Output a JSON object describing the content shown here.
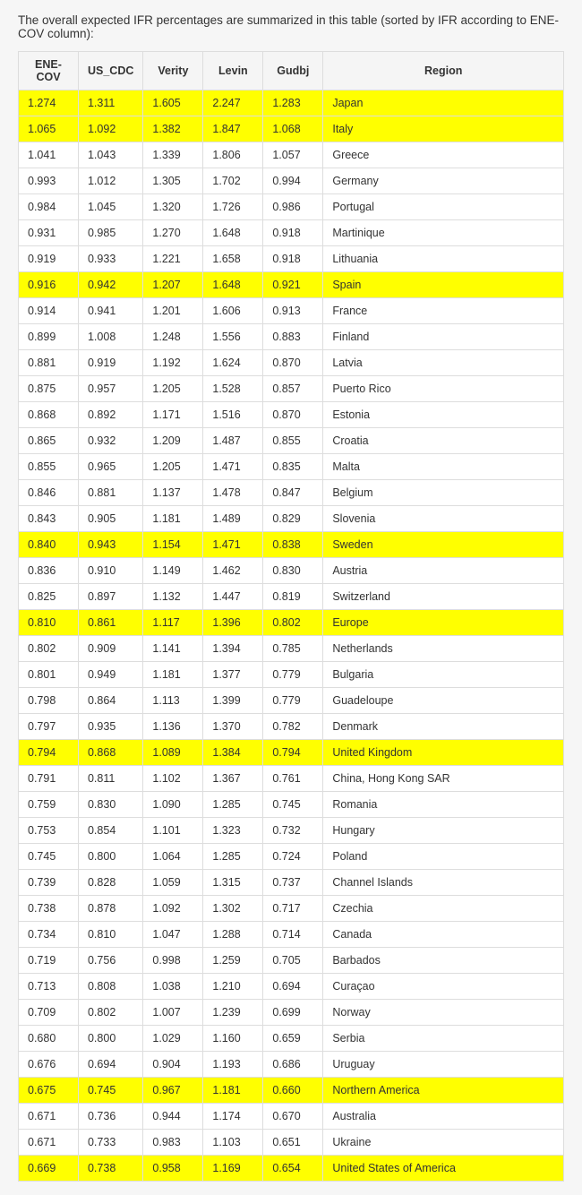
{
  "intro": "The overall expected IFR percentages are summarized in this table (sorted by IFR according to ENE-COV column):",
  "table": {
    "columns": [
      "ENE-COV",
      "US_CDC",
      "Verity",
      "Levin",
      "Gudbj",
      "Region"
    ],
    "highlight_color": "#ffff00",
    "border_color": "#dddddd",
    "header_bg": "#f5f5f5",
    "rows": [
      {
        "hl": true,
        "v": [
          "1.274",
          "1.311",
          "1.605",
          "2.247",
          "1.283",
          "Japan"
        ]
      },
      {
        "hl": true,
        "v": [
          "1.065",
          "1.092",
          "1.382",
          "1.847",
          "1.068",
          "Italy"
        ]
      },
      {
        "hl": false,
        "v": [
          "1.041",
          "1.043",
          "1.339",
          "1.806",
          "1.057",
          "Greece"
        ]
      },
      {
        "hl": false,
        "v": [
          "0.993",
          "1.012",
          "1.305",
          "1.702",
          "0.994",
          "Germany"
        ]
      },
      {
        "hl": false,
        "v": [
          "0.984",
          "1.045",
          "1.320",
          "1.726",
          "0.986",
          "Portugal"
        ]
      },
      {
        "hl": false,
        "v": [
          "0.931",
          "0.985",
          "1.270",
          "1.648",
          "0.918",
          "Martinique"
        ]
      },
      {
        "hl": false,
        "v": [
          "0.919",
          "0.933",
          "1.221",
          "1.658",
          "0.918",
          "Lithuania"
        ]
      },
      {
        "hl": true,
        "v": [
          "0.916",
          "0.942",
          "1.207",
          "1.648",
          "0.921",
          "Spain"
        ]
      },
      {
        "hl": false,
        "v": [
          "0.914",
          "0.941",
          "1.201",
          "1.606",
          "0.913",
          "France"
        ]
      },
      {
        "hl": false,
        "v": [
          "0.899",
          "1.008",
          "1.248",
          "1.556",
          "0.883",
          "Finland"
        ]
      },
      {
        "hl": false,
        "v": [
          "0.881",
          "0.919",
          "1.192",
          "1.624",
          "0.870",
          "Latvia"
        ]
      },
      {
        "hl": false,
        "v": [
          "0.875",
          "0.957",
          "1.205",
          "1.528",
          "0.857",
          "Puerto Rico"
        ]
      },
      {
        "hl": false,
        "v": [
          "0.868",
          "0.892",
          "1.171",
          "1.516",
          "0.870",
          "Estonia"
        ]
      },
      {
        "hl": false,
        "v": [
          "0.865",
          "0.932",
          "1.209",
          "1.487",
          "0.855",
          "Croatia"
        ]
      },
      {
        "hl": false,
        "v": [
          "0.855",
          "0.965",
          "1.205",
          "1.471",
          "0.835",
          "Malta"
        ]
      },
      {
        "hl": false,
        "v": [
          "0.846",
          "0.881",
          "1.137",
          "1.478",
          "0.847",
          "Belgium"
        ]
      },
      {
        "hl": false,
        "v": [
          "0.843",
          "0.905",
          "1.181",
          "1.489",
          "0.829",
          "Slovenia"
        ]
      },
      {
        "hl": true,
        "v": [
          "0.840",
          "0.943",
          "1.154",
          "1.471",
          "0.838",
          "Sweden"
        ]
      },
      {
        "hl": false,
        "v": [
          "0.836",
          "0.910",
          "1.149",
          "1.462",
          "0.830",
          "Austria"
        ]
      },
      {
        "hl": false,
        "v": [
          "0.825",
          "0.897",
          "1.132",
          "1.447",
          "0.819",
          "Switzerland"
        ]
      },
      {
        "hl": true,
        "v": [
          "0.810",
          "0.861",
          "1.117",
          "1.396",
          "0.802",
          "Europe"
        ]
      },
      {
        "hl": false,
        "v": [
          "0.802",
          "0.909",
          "1.141",
          "1.394",
          "0.785",
          "Netherlands"
        ]
      },
      {
        "hl": false,
        "v": [
          "0.801",
          "0.949",
          "1.181",
          "1.377",
          "0.779",
          "Bulgaria"
        ]
      },
      {
        "hl": false,
        "v": [
          "0.798",
          "0.864",
          "1.113",
          "1.399",
          "0.779",
          "Guadeloupe"
        ]
      },
      {
        "hl": false,
        "v": [
          "0.797",
          "0.935",
          "1.136",
          "1.370",
          "0.782",
          "Denmark"
        ]
      },
      {
        "hl": true,
        "v": [
          "0.794",
          "0.868",
          "1.089",
          "1.384",
          "0.794",
          "United Kingdom"
        ]
      },
      {
        "hl": false,
        "v": [
          "0.791",
          "0.811",
          "1.102",
          "1.367",
          "0.761",
          "China, Hong Kong SAR"
        ]
      },
      {
        "hl": false,
        "v": [
          "0.759",
          "0.830",
          "1.090",
          "1.285",
          "0.745",
          "Romania"
        ]
      },
      {
        "hl": false,
        "v": [
          "0.753",
          "0.854",
          "1.101",
          "1.323",
          "0.732",
          "Hungary"
        ]
      },
      {
        "hl": false,
        "v": [
          "0.745",
          "0.800",
          "1.064",
          "1.285",
          "0.724",
          "Poland"
        ]
      },
      {
        "hl": false,
        "v": [
          "0.739",
          "0.828",
          "1.059",
          "1.315",
          "0.737",
          "Channel Islands"
        ]
      },
      {
        "hl": false,
        "v": [
          "0.738",
          "0.878",
          "1.092",
          "1.302",
          "0.717",
          "Czechia"
        ]
      },
      {
        "hl": false,
        "v": [
          "0.734",
          "0.810",
          "1.047",
          "1.288",
          "0.714",
          "Canada"
        ]
      },
      {
        "hl": false,
        "v": [
          "0.719",
          "0.756",
          "0.998",
          "1.259",
          "0.705",
          "Barbados"
        ]
      },
      {
        "hl": false,
        "v": [
          "0.713",
          "0.808",
          "1.038",
          "1.210",
          "0.694",
          "Curaçao"
        ]
      },
      {
        "hl": false,
        "v": [
          "0.709",
          "0.802",
          "1.007",
          "1.239",
          "0.699",
          "Norway"
        ]
      },
      {
        "hl": false,
        "v": [
          "0.680",
          "0.800",
          "1.029",
          "1.160",
          "0.659",
          "Serbia"
        ]
      },
      {
        "hl": false,
        "v": [
          "0.676",
          "0.694",
          "0.904",
          "1.193",
          "0.686",
          "Uruguay"
        ]
      },
      {
        "hl": true,
        "v": [
          "0.675",
          "0.745",
          "0.967",
          "1.181",
          "0.660",
          "Northern America"
        ]
      },
      {
        "hl": false,
        "v": [
          "0.671",
          "0.736",
          "0.944",
          "1.174",
          "0.670",
          "Australia"
        ]
      },
      {
        "hl": false,
        "v": [
          "0.671",
          "0.733",
          "0.983",
          "1.103",
          "0.651",
          "Ukraine"
        ]
      },
      {
        "hl": true,
        "v": [
          "0.669",
          "0.738",
          "0.958",
          "1.169",
          "0.654",
          "United States of America"
        ]
      }
    ]
  }
}
